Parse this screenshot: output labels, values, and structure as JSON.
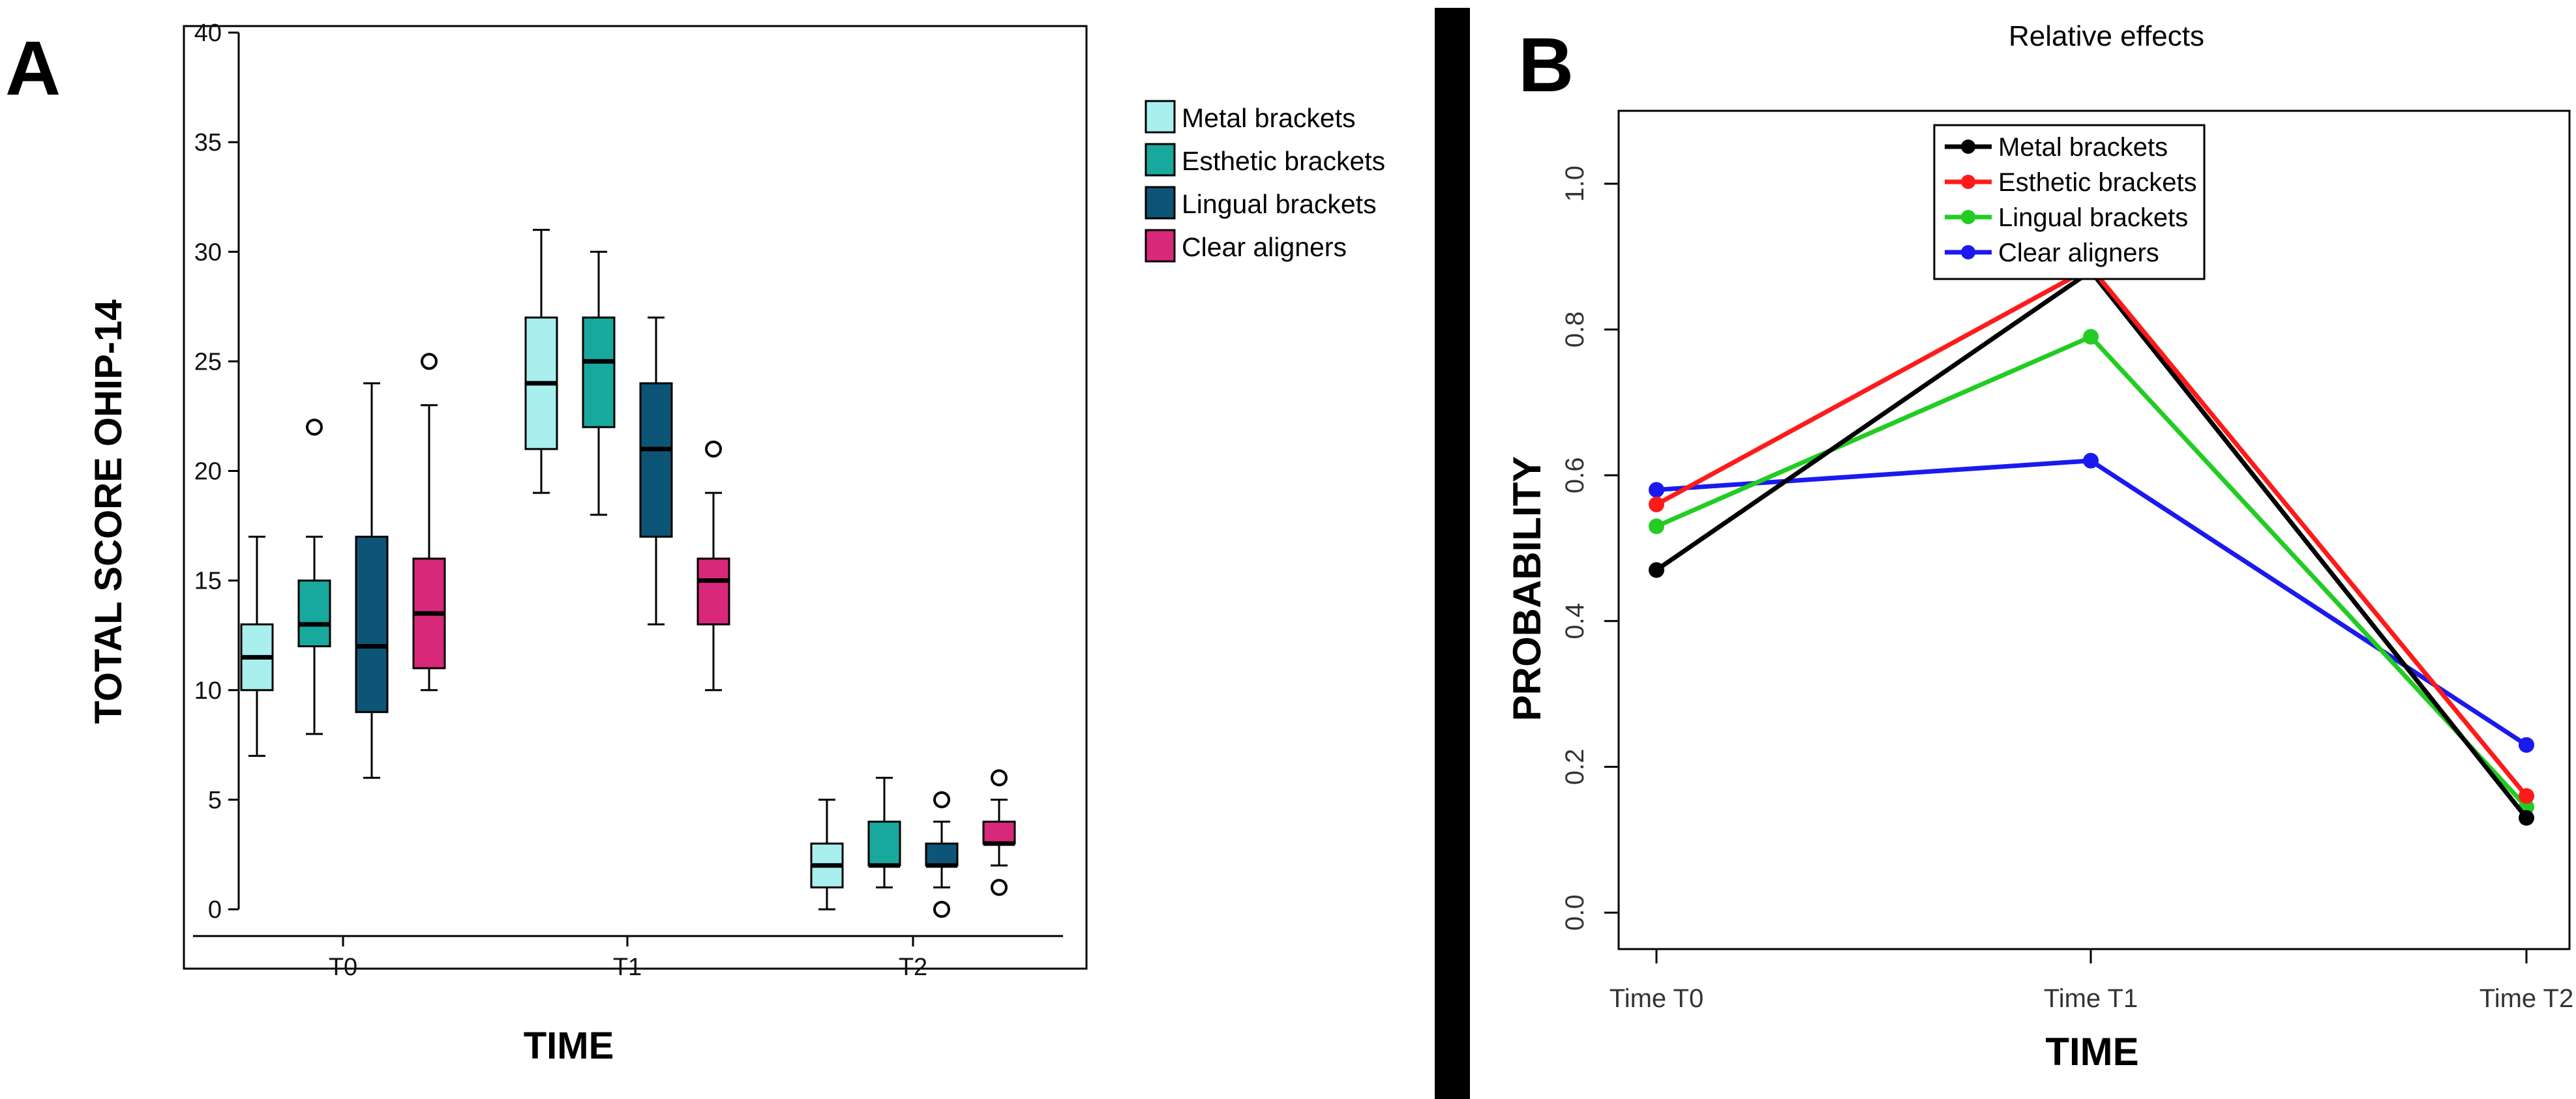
{
  "panel_a_letter": "A",
  "panel_b_letter": "B",
  "colors": {
    "metal": "#a8efee",
    "esthetic": "#18a89e",
    "lingual": "#0d5577",
    "clear": "#d8287a",
    "line_metal": "#000000",
    "line_esthetic": "#ff1a1a",
    "line_lingual": "#22cc22",
    "line_clear": "#1a1aee",
    "divider": "#000000"
  },
  "chart_data": [
    {
      "type": "box",
      "title": "",
      "xlabel": "TIME",
      "ylabel": "TOTAL SCORE OHIP-14",
      "ylim": [
        0,
        40
      ],
      "yticks": [
        "0",
        "5",
        "10",
        "15",
        "20",
        "25",
        "30",
        "35",
        "40"
      ],
      "categories": [
        "T0",
        "T1",
        "T2"
      ],
      "legend_position": "right, outside plot",
      "series": [
        {
          "name": "Metal brackets",
          "boxes": [
            {
              "whisker_low": 7,
              "q1": 10,
              "median": 11.5,
              "q3": 13,
              "whisker_high": 17,
              "outliers": []
            },
            {
              "whisker_low": 19,
              "q1": 21,
              "median": 24,
              "q3": 27,
              "whisker_high": 31,
              "outliers": []
            },
            {
              "whisker_low": 0,
              "q1": 1,
              "median": 2,
              "q3": 3,
              "whisker_high": 5,
              "outliers": []
            }
          ]
        },
        {
          "name": "Esthetic brackets",
          "boxes": [
            {
              "whisker_low": 8,
              "q1": 12,
              "median": 13,
              "q3": 15,
              "whisker_high": 17,
              "outliers": [
                22
              ]
            },
            {
              "whisker_low": 18,
              "q1": 22,
              "median": 25,
              "q3": 27,
              "whisker_high": 30,
              "outliers": []
            },
            {
              "whisker_low": 1,
              "q1": 2,
              "median": 2,
              "q3": 4,
              "whisker_high": 6,
              "outliers": []
            }
          ]
        },
        {
          "name": "Lingual brackets",
          "boxes": [
            {
              "whisker_low": 6,
              "q1": 9,
              "median": 12,
              "q3": 17,
              "whisker_high": 24,
              "outliers": []
            },
            {
              "whisker_low": 13,
              "q1": 17,
              "median": 21,
              "q3": 24,
              "whisker_high": 27,
              "outliers": []
            },
            {
              "whisker_low": 1,
              "q1": 2,
              "median": 2,
              "q3": 3,
              "whisker_high": 4,
              "outliers": [
                5,
                0
              ]
            }
          ]
        },
        {
          "name": "Clear aligners",
          "boxes": [
            {
              "whisker_low": 10,
              "q1": 11,
              "median": 13.5,
              "q3": 16,
              "whisker_high": 23,
              "outliers": [
                25
              ]
            },
            {
              "whisker_low": 10,
              "q1": 13,
              "median": 15,
              "q3": 16,
              "whisker_high": 19,
              "outliers": [
                21
              ]
            },
            {
              "whisker_low": 2,
              "q1": 3,
              "median": 3,
              "q3": 4,
              "whisker_high": 5,
              "outliers": [
                6,
                1
              ]
            }
          ]
        }
      ]
    },
    {
      "type": "line",
      "title": "Relative effects",
      "xlabel": "TIME",
      "ylabel": "PROBABILITY",
      "ylim": [
        -0.05,
        1.1
      ],
      "yticks": [
        "0.0",
        "0.2",
        "0.4",
        "0.6",
        "0.8",
        "1.0"
      ],
      "categories": [
        "Time T0",
        "Time T1",
        "Time T2"
      ],
      "legend_position": "top-center",
      "series": [
        {
          "name": "Metal brackets",
          "values": [
            0.47,
            0.88,
            0.13
          ]
        },
        {
          "name": "Esthetic brackets",
          "values": [
            0.56,
            0.885,
            0.16
          ]
        },
        {
          "name": "Lingual brackets",
          "values": [
            0.53,
            0.79,
            0.145
          ]
        },
        {
          "name": "Clear aligners",
          "values": [
            0.58,
            0.62,
            0.23
          ]
        }
      ]
    }
  ]
}
